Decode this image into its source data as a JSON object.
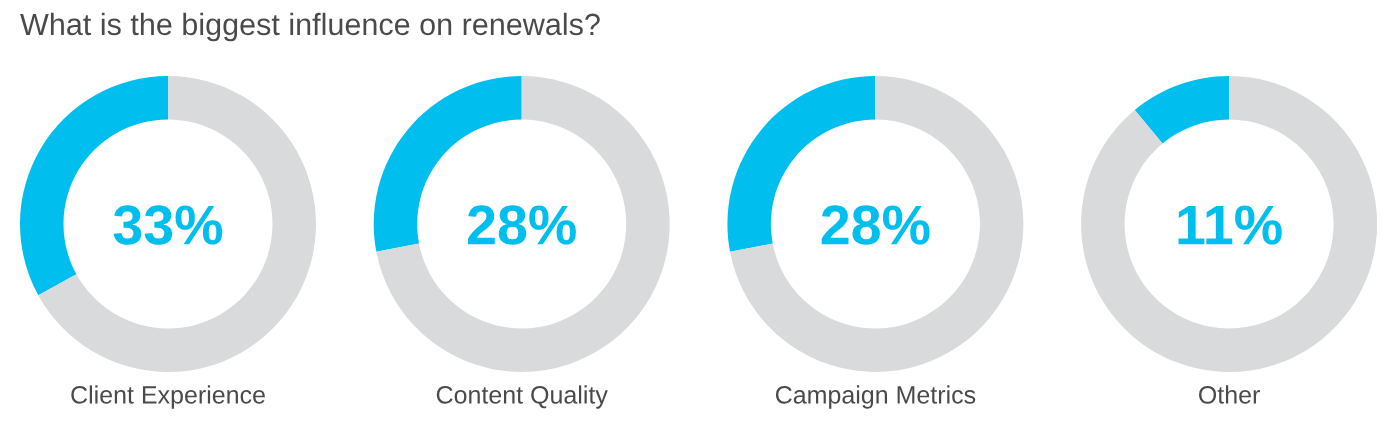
{
  "chart_data": [
    {
      "type": "donut",
      "title": "What is the biggest influence on renewals?",
      "xlabel": "Client Experience",
      "categories": [
        null,
        null
      ],
      "values": [
        33,
        67
      ],
      "colors": [
        "#00bfee",
        "#d9dadc"
      ],
      "annotations": [
        "33%"
      ]
    },
    {
      "type": "donut",
      "xlabel": "Content Quality",
      "categories": [
        null,
        null
      ],
      "values": [
        28,
        72
      ],
      "colors": [
        "#00bfee",
        "#d9dadc"
      ],
      "annotations": [
        "28%"
      ]
    },
    {
      "type": "donut",
      "xlabel": "Campaign Metrics",
      "categories": [
        null,
        null
      ],
      "values": [
        28,
        72
      ],
      "colors": [
        "#00bfee",
        "#d9dadc"
      ],
      "annotations": [
        "28%"
      ]
    },
    {
      "type": "donut",
      "xlabel": "Other",
      "categories": [
        null,
        null
      ],
      "values": [
        11,
        89
      ],
      "colors": [
        "#00bfee",
        "#d9dadc"
      ],
      "annotations": [
        "11%"
      ]
    }
  ]
}
